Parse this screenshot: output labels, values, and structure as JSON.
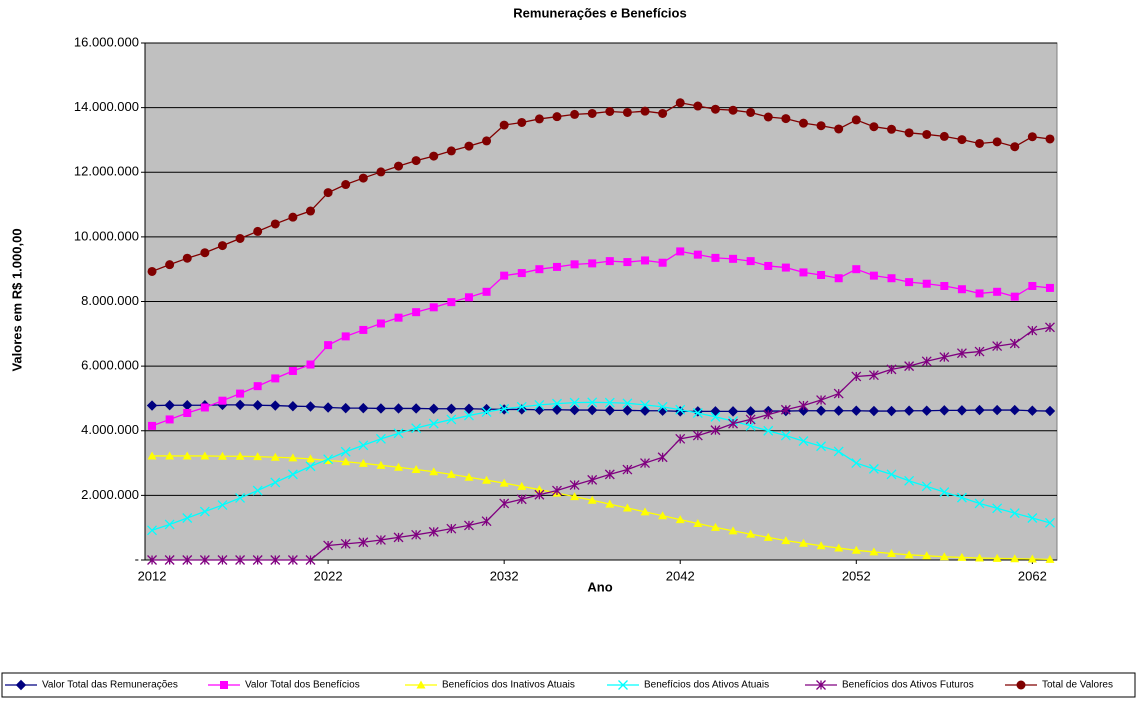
{
  "chart_data": {
    "type": "line",
    "title": "Remunerações e Benefícios",
    "x_label": "Ano",
    "y_label": "Valores em R$ 1.000,00",
    "x": [
      2012,
      2013,
      2014,
      2015,
      2016,
      2017,
      2018,
      2019,
      2020,
      2021,
      2022,
      2023,
      2024,
      2025,
      2026,
      2027,
      2028,
      2029,
      2030,
      2031,
      2032,
      2033,
      2034,
      2035,
      2036,
      2037,
      2038,
      2039,
      2040,
      2041,
      2042,
      2043,
      2044,
      2045,
      2046,
      2047,
      2048,
      2049,
      2050,
      2051,
      2052,
      2053,
      2054,
      2055,
      2056,
      2057,
      2058,
      2059,
      2060,
      2061,
      2062,
      2063
    ],
    "xlim": [
      2011.6,
      2063.4
    ],
    "xticks": [
      2012,
      2022,
      2032,
      2042,
      2052,
      2062
    ],
    "ylim": [
      0,
      16000000
    ],
    "yticks": [
      {
        "value": 0,
        "label": "-"
      },
      {
        "value": 2000000,
        "label": "2.000.000"
      },
      {
        "value": 4000000,
        "label": "4.000.000"
      },
      {
        "value": 6000000,
        "label": "6.000.000"
      },
      {
        "value": 8000000,
        "label": "8.000.000"
      },
      {
        "value": 10000000,
        "label": "10.000.000"
      },
      {
        "value": 12000000,
        "label": "12.000.000"
      },
      {
        "value": 14000000,
        "label": "14.000.000"
      },
      {
        "value": 16000000,
        "label": "16.000.000"
      }
    ],
    "grid": true,
    "legend_position": "bottom",
    "series": [
      {
        "name": "Valor Total das Remunerações",
        "color": "#000080",
        "marker": "diamond",
        "values": [
          4780000,
          4790000,
          4790000,
          4790000,
          4800000,
          4800000,
          4790000,
          4780000,
          4760000,
          4750000,
          4720000,
          4700000,
          4700000,
          4690000,
          4690000,
          4690000,
          4680000,
          4680000,
          4680000,
          4670000,
          4660000,
          4660000,
          4650000,
          4650000,
          4640000,
          4640000,
          4630000,
          4630000,
          4620000,
          4620000,
          4600000,
          4600000,
          4600000,
          4600000,
          4600000,
          4610000,
          4610000,
          4620000,
          4620000,
          4620000,
          4620000,
          4610000,
          4610000,
          4620000,
          4620000,
          4630000,
          4630000,
          4640000,
          4640000,
          4640000,
          4620000,
          4610000
        ]
      },
      {
        "name": "Valor Total dos Benefícios",
        "color": "#ff00ff",
        "marker": "square",
        "values": [
          4150000,
          4350000,
          4550000,
          4720000,
          4930000,
          5150000,
          5380000,
          5620000,
          5850000,
          6050000,
          6650000,
          6920000,
          7120000,
          7320000,
          7500000,
          7670000,
          7820000,
          7980000,
          8130000,
          8300000,
          8800000,
          8880000,
          9000000,
          9070000,
          9150000,
          9180000,
          9250000,
          9220000,
          9270000,
          9200000,
          9550000,
          9450000,
          9350000,
          9320000,
          9250000,
          9100000,
          9050000,
          8900000,
          8820000,
          8720000,
          9000000,
          8800000,
          8720000,
          8600000,
          8550000,
          8480000,
          8380000,
          8250000,
          8300000,
          8150000,
          8480000,
          8420000
        ]
      },
      {
        "name": "Benefícios dos Inativos Atuais",
        "color": "#ffff00",
        "marker": "triangle",
        "values": [
          3220000,
          3220000,
          3220000,
          3220000,
          3210000,
          3210000,
          3200000,
          3180000,
          3160000,
          3130000,
          3080000,
          3040000,
          2990000,
          2930000,
          2870000,
          2800000,
          2730000,
          2650000,
          2560000,
          2470000,
          2380000,
          2280000,
          2180000,
          2070000,
          1960000,
          1850000,
          1730000,
          1610000,
          1490000,
          1370000,
          1250000,
          1130000,
          1010000,
          900000,
          800000,
          700000,
          600000,
          520000,
          440000,
          370000,
          300000,
          250000,
          200000,
          160000,
          130000,
          100000,
          80000,
          60000,
          50000,
          40000,
          30000,
          20000
        ]
      },
      {
        "name": "Benefícios dos Ativos Atuais",
        "color": "#00ffff",
        "marker": "x",
        "values": [
          920000,
          1100000,
          1300000,
          1500000,
          1700000,
          1920000,
          2150000,
          2400000,
          2650000,
          2900000,
          3120000,
          3350000,
          3550000,
          3750000,
          3920000,
          4080000,
          4220000,
          4350000,
          4470000,
          4580000,
          4680000,
          4740000,
          4800000,
          4840000,
          4870000,
          4880000,
          4870000,
          4850000,
          4800000,
          4740000,
          4650000,
          4550000,
          4430000,
          4300000,
          4150000,
          4000000,
          3850000,
          3680000,
          3520000,
          3360000,
          3000000,
          2820000,
          2650000,
          2450000,
          2280000,
          2100000,
          1930000,
          1750000,
          1600000,
          1450000,
          1300000,
          1150000
        ]
      },
      {
        "name": "Benefícios dos Ativos Futuros",
        "color": "#800080",
        "marker": "star",
        "values": [
          0,
          0,
          0,
          0,
          0,
          0,
          0,
          0,
          0,
          0,
          450000,
          500000,
          550000,
          620000,
          700000,
          780000,
          870000,
          970000,
          1070000,
          1200000,
          1750000,
          1880000,
          2020000,
          2150000,
          2320000,
          2480000,
          2650000,
          2800000,
          3000000,
          3180000,
          3750000,
          3850000,
          4020000,
          4220000,
          4350000,
          4500000,
          4650000,
          4780000,
          4950000,
          5150000,
          5680000,
          5720000,
          5900000,
          6000000,
          6150000,
          6280000,
          6400000,
          6450000,
          6620000,
          6700000,
          7100000,
          7200000
        ]
      },
      {
        "name": "Total de Valores",
        "color": "#800000",
        "marker": "circle",
        "values": [
          8930000,
          9140000,
          9340000,
          9510000,
          9730000,
          9950000,
          10170000,
          10400000,
          10610000,
          10800000,
          11370000,
          11620000,
          11820000,
          12010000,
          12190000,
          12360000,
          12500000,
          12660000,
          12810000,
          12970000,
          13460000,
          13540000,
          13650000,
          13720000,
          13790000,
          13820000,
          13880000,
          13850000,
          13890000,
          13820000,
          14150000,
          14050000,
          13950000,
          13920000,
          13850000,
          13710000,
          13660000,
          13520000,
          13440000,
          13340000,
          13620000,
          13410000,
          13330000,
          13220000,
          13170000,
          13110000,
          13010000,
          12890000,
          12940000,
          12790000,
          13100000,
          13030000
        ]
      }
    ]
  }
}
